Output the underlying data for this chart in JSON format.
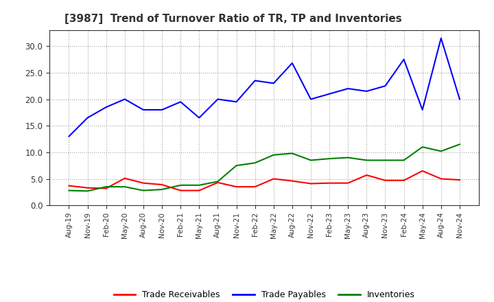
{
  "title": "[3987]  Trend of Turnover Ratio of TR, TP and Inventories",
  "x_labels": [
    "Aug-19",
    "Nov-19",
    "Feb-20",
    "May-20",
    "Aug-20",
    "Nov-20",
    "Feb-21",
    "May-21",
    "Aug-21",
    "Nov-21",
    "Feb-22",
    "May-22",
    "Aug-22",
    "Nov-22",
    "Feb-23",
    "May-23",
    "Aug-23",
    "Nov-23",
    "Feb-24",
    "May-24",
    "Aug-24",
    "Nov-24"
  ],
  "trade_receivables": [
    3.7,
    3.3,
    3.2,
    5.1,
    4.2,
    3.9,
    2.8,
    2.8,
    4.3,
    3.5,
    3.5,
    5.0,
    4.6,
    4.1,
    4.2,
    4.2,
    5.7,
    4.7,
    4.7,
    6.5,
    5.0,
    4.8
  ],
  "trade_payables": [
    13.0,
    16.5,
    18.5,
    20.0,
    18.0,
    18.0,
    19.5,
    16.5,
    20.0,
    19.5,
    23.5,
    23.0,
    26.8,
    20.0,
    21.0,
    22.0,
    21.5,
    22.5,
    27.5,
    18.0,
    31.5,
    20.0
  ],
  "inventories": [
    2.8,
    2.7,
    3.5,
    3.5,
    2.8,
    3.0,
    3.8,
    3.8,
    4.5,
    7.5,
    8.0,
    9.5,
    9.8,
    8.5,
    8.8,
    9.0,
    8.5,
    8.5,
    8.5,
    11.0,
    10.2,
    11.5
  ],
  "tr_color": "#ff0000",
  "tp_color": "#0000ff",
  "inv_color": "#008000",
  "ylim": [
    0.0,
    33.0
  ],
  "yticks": [
    0.0,
    5.0,
    10.0,
    15.0,
    20.0,
    25.0,
    30.0
  ],
  "legend_labels": [
    "Trade Receivables",
    "Trade Payables",
    "Inventories"
  ],
  "title_color": "#333333",
  "background_color": "#ffffff",
  "grid_color": "#999999"
}
